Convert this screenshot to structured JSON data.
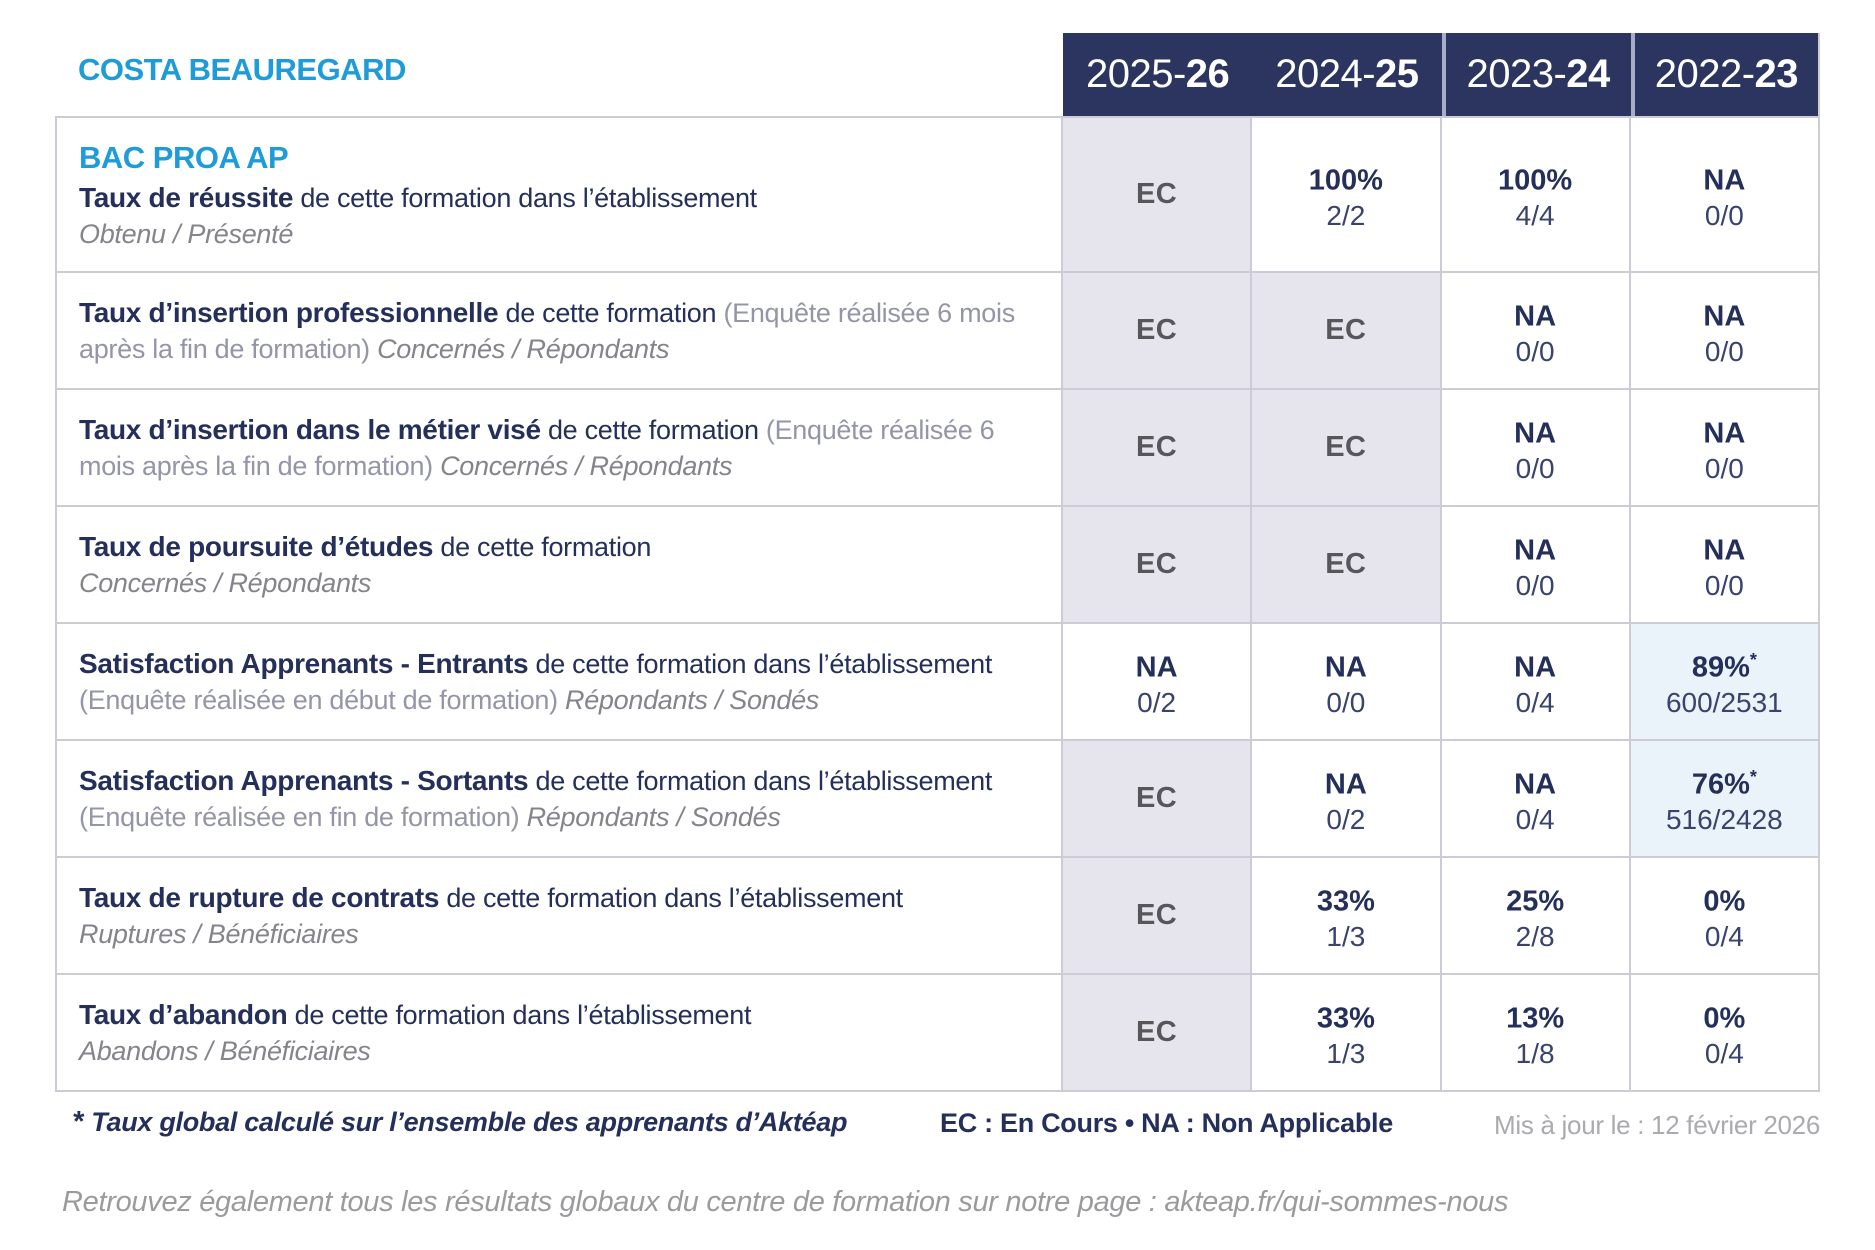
{
  "title": "COSTA BEAUREGARD",
  "colors": {
    "accent_blue": "#1E9CD9",
    "navy_text": "#242F5A",
    "header_navy": "#2B3560",
    "cell_gray_bg": "#E6E5EE",
    "cell_blue_bg": "#EBF3FA",
    "ec_text": "#57575B",
    "muted_gray": "#9595A8",
    "border_gray": "#CCCBD6",
    "update_gray": "#ABABAF"
  },
  "header": {
    "years": [
      {
        "prefix": "2025-",
        "suffix": "26"
      },
      {
        "prefix": "2024-",
        "suffix": "25"
      },
      {
        "prefix": "2023-",
        "suffix": "24"
      },
      {
        "prefix": "2022-",
        "suffix": "23"
      }
    ]
  },
  "table": {
    "program": "BAC PROA AP",
    "rows": [
      {
        "bold": "Taux de réussite",
        "normal": "de cette formation dans l’établissement",
        "paren": "",
        "sub": "Obtenu / Présenté",
        "cells": [
          {
            "main": "EC",
            "sub": "",
            "star": ""
          },
          {
            "main": "100%",
            "sub": "2/2",
            "star": ""
          },
          {
            "main": "100%",
            "sub": "4/4",
            "star": ""
          },
          {
            "main": "NA",
            "sub": "0/0",
            "star": ""
          }
        ]
      },
      {
        "bold": "Taux d’insertion professionnelle",
        "normal": "de cette formation",
        "paren": "(Enquête réalisée 6 mois après la fin de formation)",
        "sub": "Concernés / Répondants",
        "cells": [
          {
            "main": "EC",
            "sub": "",
            "star": ""
          },
          {
            "main": "EC",
            "sub": "",
            "star": ""
          },
          {
            "main": "NA",
            "sub": "0/0",
            "star": ""
          },
          {
            "main": "NA",
            "sub": "0/0",
            "star": ""
          }
        ]
      },
      {
        "bold": "Taux d’insertion dans le métier visé",
        "normal": "de cette formation",
        "paren": "(Enquête réalisée 6 mois après la fin de formation)",
        "sub": "Concernés / Répondants",
        "cells": [
          {
            "main": "EC",
            "sub": "",
            "star": ""
          },
          {
            "main": "EC",
            "sub": "",
            "star": ""
          },
          {
            "main": "NA",
            "sub": "0/0",
            "star": ""
          },
          {
            "main": "NA",
            "sub": "0/0",
            "star": ""
          }
        ]
      },
      {
        "bold": "Taux de poursuite d’études",
        "normal": "de cette formation",
        "paren": "",
        "sub": "Concernés / Répondants",
        "cells": [
          {
            "main": "EC",
            "sub": "",
            "star": ""
          },
          {
            "main": "EC",
            "sub": "",
            "star": ""
          },
          {
            "main": "NA",
            "sub": "0/0",
            "star": ""
          },
          {
            "main": "NA",
            "sub": "0/0",
            "star": ""
          }
        ]
      },
      {
        "bold": "Satisfaction Apprenants - Entrants",
        "normal": "de cette formation dans l’établissement",
        "paren": "(Enquête réalisée en début de formation)",
        "sub": "Répondants / Sondés",
        "cells": [
          {
            "main": "NA",
            "sub": "0/2",
            "star": ""
          },
          {
            "main": "NA",
            "sub": "0/0",
            "star": ""
          },
          {
            "main": "NA",
            "sub": "0/4",
            "star": ""
          },
          {
            "main": "89%",
            "sub": "600/2531",
            "star": "*"
          }
        ]
      },
      {
        "bold": "Satisfaction Apprenants - Sortants",
        "normal": "de cette formation dans l’établissement",
        "paren": "(Enquête réalisée en fin de formation)",
        "sub": "Répondants / Sondés",
        "cells": [
          {
            "main": "EC",
            "sub": "",
            "star": ""
          },
          {
            "main": "NA",
            "sub": "0/2",
            "star": ""
          },
          {
            "main": "NA",
            "sub": "0/4",
            "star": ""
          },
          {
            "main": "76%",
            "sub": "516/2428",
            "star": "*"
          }
        ]
      },
      {
        "bold": "Taux de rupture de contrats",
        "normal": "de cette formation dans l’établissement",
        "paren": "",
        "sub": "Ruptures / Bénéficiaires",
        "cells": [
          {
            "main": "EC",
            "sub": "",
            "star": ""
          },
          {
            "main": "33%",
            "sub": "1/3",
            "star": ""
          },
          {
            "main": "25%",
            "sub": "2/8",
            "star": ""
          },
          {
            "main": "0%",
            "sub": "0/4",
            "star": ""
          }
        ]
      },
      {
        "bold": "Taux d’abandon",
        "normal": "de cette formation dans l’établissement",
        "paren": "",
        "sub": "Abandons / Bénéficiaires",
        "cells": [
          {
            "main": "EC",
            "sub": "",
            "star": ""
          },
          {
            "main": "33%",
            "sub": "1/3",
            "star": ""
          },
          {
            "main": "13%",
            "sub": "1/8",
            "star": ""
          },
          {
            "main": "0%",
            "sub": "0/4",
            "star": ""
          }
        ]
      }
    ]
  },
  "footer": {
    "star": "*",
    "note": "Taux global calculé sur l’ensemble des apprenants d’Aktéap",
    "legend": "EC : En Cours  •  NA : Non Applicable",
    "updated": "Mis à jour le : 12 février 2026",
    "bottom": "Retrouvez également tous les résultats globaux du centre de formation sur notre page : akteap.fr/qui-sommes-nous"
  }
}
